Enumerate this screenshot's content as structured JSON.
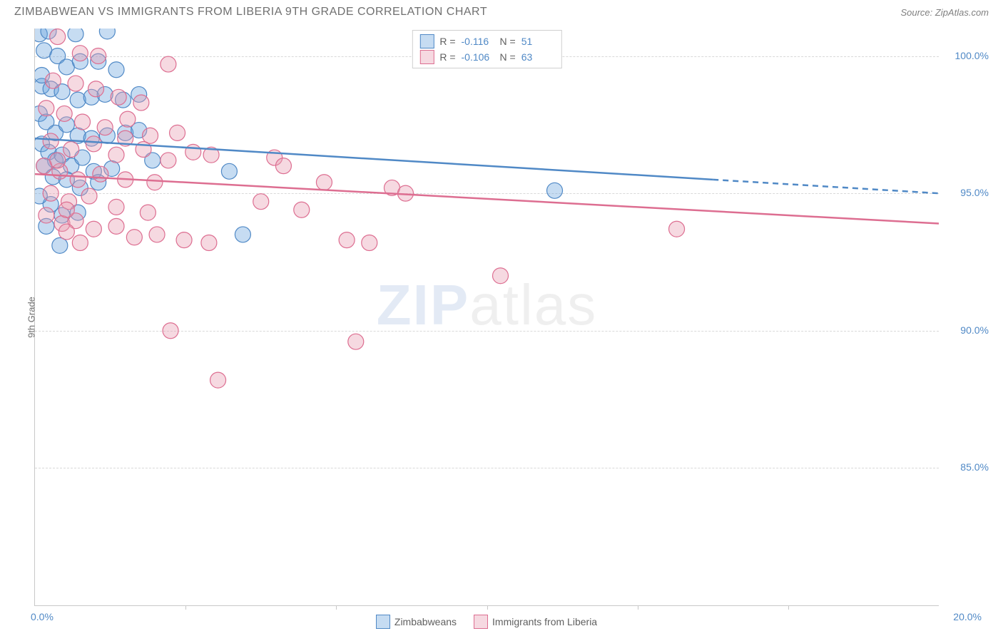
{
  "title": "ZIMBABWEAN VS IMMIGRANTS FROM LIBERIA 9TH GRADE CORRELATION CHART",
  "source": "Source: ZipAtlas.com",
  "watermark_a": "ZIP",
  "watermark_b": "atlas",
  "chart": {
    "type": "scatter",
    "ylabel": "9th Grade",
    "xlim": [
      0,
      20
    ],
    "ylim": [
      80,
      101
    ],
    "xtick_left": "0.0%",
    "xtick_right": "20.0%",
    "x_inner_ticks_pct": [
      16.67,
      33.33,
      50,
      66.67,
      83.33
    ],
    "yticks": [
      {
        "v": 85,
        "label": "85.0%"
      },
      {
        "v": 90,
        "label": "90.0%"
      },
      {
        "v": 95,
        "label": "95.0%"
      },
      {
        "v": 100,
        "label": "100.0%"
      }
    ],
    "marker_radius": 11,
    "marker_opacity": 0.55,
    "grid_color": "#d8d8d8",
    "background": "#ffffff",
    "series": [
      {
        "name": "Zimbabweans",
        "color": "#6aa3de",
        "fill": "rgba(106,163,222,0.38)",
        "stroke": "#5089c6",
        "R": "-0.116",
        "N": "51",
        "trend": {
          "x1": 0,
          "y1": 97.0,
          "x2": 20,
          "y2": 95.0,
          "solid_until_x": 15
        },
        "points": [
          [
            0.1,
            100.8
          ],
          [
            0.3,
            100.9
          ],
          [
            0.9,
            100.8
          ],
          [
            1.6,
            100.9
          ],
          [
            0.2,
            100.2
          ],
          [
            0.5,
            100.0
          ],
          [
            0.7,
            99.6
          ],
          [
            1.0,
            99.8
          ],
          [
            1.4,
            99.8
          ],
          [
            1.8,
            99.5
          ],
          [
            0.15,
            98.9
          ],
          [
            0.35,
            98.8
          ],
          [
            0.6,
            98.7
          ],
          [
            0.95,
            98.4
          ],
          [
            1.25,
            98.5
          ],
          [
            1.55,
            98.6
          ],
          [
            1.95,
            98.4
          ],
          [
            2.3,
            98.6
          ],
          [
            0.1,
            97.9
          ],
          [
            0.25,
            97.6
          ],
          [
            0.45,
            97.2
          ],
          [
            0.7,
            97.5
          ],
          [
            0.95,
            97.1
          ],
          [
            1.25,
            97.0
          ],
          [
            1.6,
            97.1
          ],
          [
            2.0,
            97.2
          ],
          [
            2.3,
            97.3
          ],
          [
            2.6,
            96.2
          ],
          [
            0.15,
            96.8
          ],
          [
            0.3,
            96.5
          ],
          [
            0.45,
            96.2
          ],
          [
            0.6,
            96.4
          ],
          [
            0.8,
            96.0
          ],
          [
            1.05,
            96.3
          ],
          [
            1.3,
            95.8
          ],
          [
            1.7,
            95.9
          ],
          [
            0.2,
            96.0
          ],
          [
            0.4,
            95.6
          ],
          [
            0.7,
            95.5
          ],
          [
            1.0,
            95.2
          ],
          [
            1.4,
            95.4
          ],
          [
            4.3,
            95.8
          ],
          [
            0.35,
            94.6
          ],
          [
            0.6,
            94.2
          ],
          [
            0.95,
            94.3
          ],
          [
            0.1,
            94.9
          ],
          [
            0.25,
            93.8
          ],
          [
            0.55,
            93.1
          ],
          [
            4.6,
            93.5
          ],
          [
            11.5,
            95.1
          ],
          [
            0.15,
            99.3
          ]
        ]
      },
      {
        "name": "Immigrants from Liberia",
        "color": "#e79bb0",
        "fill": "rgba(231,155,176,0.38)",
        "stroke": "#dd6e91",
        "R": "-0.106",
        "N": "63",
        "trend": {
          "x1": 0,
          "y1": 95.7,
          "x2": 20,
          "y2": 93.9,
          "solid_until_x": 20
        },
        "points": [
          [
            0.5,
            100.7
          ],
          [
            1.0,
            100.1
          ],
          [
            1.4,
            100.0
          ],
          [
            2.95,
            99.7
          ],
          [
            0.4,
            99.1
          ],
          [
            0.9,
            99.0
          ],
          [
            1.35,
            98.8
          ],
          [
            1.85,
            98.5
          ],
          [
            2.35,
            98.3
          ],
          [
            0.25,
            98.1
          ],
          [
            0.65,
            97.9
          ],
          [
            1.05,
            97.6
          ],
          [
            1.55,
            97.4
          ],
          [
            2.05,
            97.7
          ],
          [
            2.55,
            97.1
          ],
          [
            3.15,
            97.2
          ],
          [
            0.35,
            96.9
          ],
          [
            0.8,
            96.6
          ],
          [
            1.3,
            96.8
          ],
          [
            1.8,
            96.4
          ],
          [
            2.4,
            96.6
          ],
          [
            2.95,
            96.2
          ],
          [
            3.5,
            96.5
          ],
          [
            0.2,
            96.0
          ],
          [
            0.55,
            95.8
          ],
          [
            0.95,
            95.5
          ],
          [
            1.45,
            95.7
          ],
          [
            2.0,
            95.5
          ],
          [
            2.65,
            95.4
          ],
          [
            5.3,
            96.3
          ],
          [
            5.5,
            96.0
          ],
          [
            3.9,
            96.4
          ],
          [
            0.35,
            95.0
          ],
          [
            0.75,
            94.7
          ],
          [
            1.2,
            94.9
          ],
          [
            5.0,
            94.7
          ],
          [
            6.4,
            95.4
          ],
          [
            7.9,
            95.2
          ],
          [
            8.2,
            95.0
          ],
          [
            0.25,
            94.2
          ],
          [
            0.6,
            93.9
          ],
          [
            0.9,
            94.0
          ],
          [
            1.3,
            93.7
          ],
          [
            1.8,
            93.8
          ],
          [
            2.7,
            93.5
          ],
          [
            3.3,
            93.3
          ],
          [
            3.85,
            93.2
          ],
          [
            5.9,
            94.4
          ],
          [
            6.9,
            93.3
          ],
          [
            7.4,
            93.2
          ],
          [
            0.7,
            93.6
          ],
          [
            14.2,
            93.7
          ],
          [
            2.2,
            93.4
          ],
          [
            10.3,
            92.0
          ],
          [
            3.0,
            90.0
          ],
          [
            7.1,
            89.6
          ],
          [
            0.7,
            94.4
          ],
          [
            2.5,
            94.3
          ],
          [
            4.05,
            88.2
          ],
          [
            2.0,
            97.0
          ],
          [
            1.8,
            94.5
          ],
          [
            1.0,
            93.2
          ],
          [
            0.5,
            96.2
          ]
        ]
      }
    ]
  },
  "legend_top": {
    "R_label": "R =",
    "N_label": "N ="
  },
  "legend_bottom_labels": [
    "Zimbabweans",
    "Immigrants from Liberia"
  ]
}
